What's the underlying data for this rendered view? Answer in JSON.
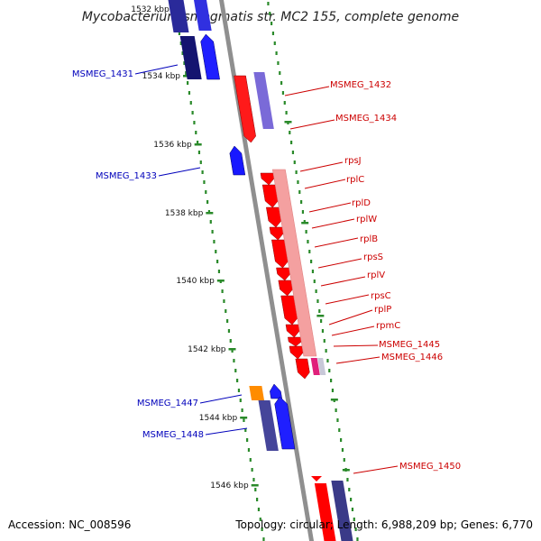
{
  "title": "Mycobacterium smegmatis str. MC2 155, complete genome",
  "accession_text": "Accession: NC_008596",
  "summary_text": "Topology: circular; Length: 6,988,209 bp; Genes: 6,770",
  "colors": {
    "backbone": "#8f8f8f",
    "tick": "#2a8a2a",
    "forward_label": "#cc0000",
    "reverse_label": "#0000bb"
  },
  "scale": {
    "unit": "kbp",
    "ticks": [
      {
        "label": "1532 kbp"
      },
      {
        "label": "1534 kbp"
      },
      {
        "label": "1536 kbp"
      },
      {
        "label": "1538 kbp"
      },
      {
        "label": "1540 kbp"
      },
      {
        "label": "1542 kbp"
      },
      {
        "label": "1544 kbp"
      },
      {
        "label": "1546 kbp"
      }
    ]
  },
  "genes_forward": [
    {
      "label": "MSMEG_1432"
    },
    {
      "label": "MSMEG_1434"
    },
    {
      "label": "rpsJ"
    },
    {
      "label": "rplC"
    },
    {
      "label": "rplD"
    },
    {
      "label": "rplW"
    },
    {
      "label": "rplB"
    },
    {
      "label": "rpsS"
    },
    {
      "label": "rplV"
    },
    {
      "label": "rpsC"
    },
    {
      "label": "rplP"
    },
    {
      "label": "rpmC"
    },
    {
      "label": "MSMEG_1445"
    },
    {
      "label": "MSMEG_1446"
    },
    {
      "label": "MSMEG_1450"
    }
  ],
  "genes_reverse": [
    {
      "label": "MSMEG_1431"
    },
    {
      "label": "MSMEG_1433"
    },
    {
      "label": "MSMEG_1447"
    },
    {
      "label": "MSMEG_1448"
    }
  ]
}
